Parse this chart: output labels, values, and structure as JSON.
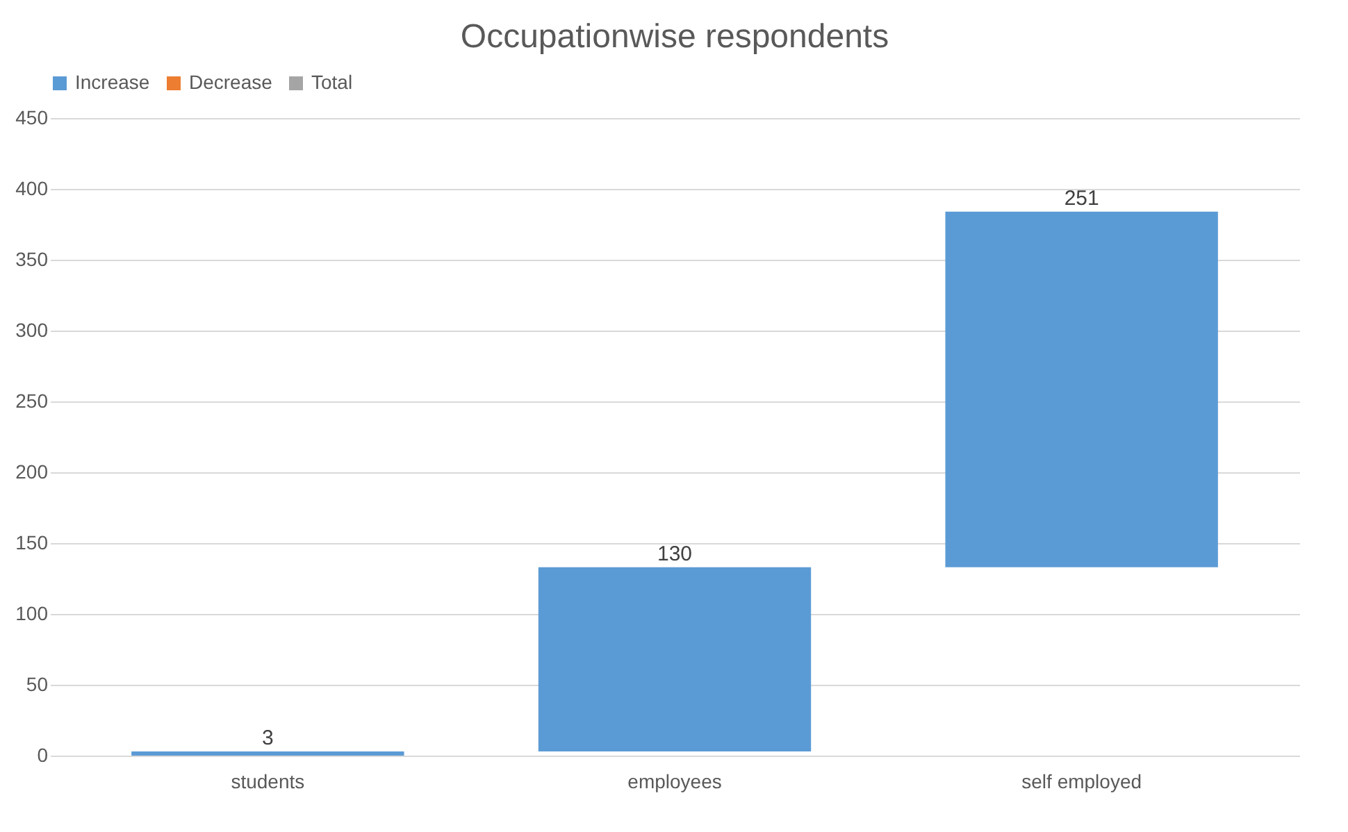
{
  "chart_data": {
    "type": "bar",
    "title": "Occupationwise respondents",
    "categories": [
      "students",
      "employees",
      "self employed"
    ],
    "series": [
      {
        "name": "Increase",
        "color": "#5b9bd5",
        "values": [
          3,
          130,
          251
        ],
        "base": [
          0,
          3,
          133
        ]
      },
      {
        "name": "Decrease",
        "color": "#ed7d31",
        "values": [
          null,
          null,
          null
        ]
      },
      {
        "name": "Total",
        "color": "#a5a5a5",
        "values": [
          null,
          null,
          null
        ]
      }
    ],
    "ylim": [
      0,
      450
    ],
    "yticks": [
      0,
      50,
      100,
      150,
      200,
      250,
      300,
      350,
      400,
      450
    ],
    "grid": "y",
    "legend": "top",
    "data_labels": true
  }
}
